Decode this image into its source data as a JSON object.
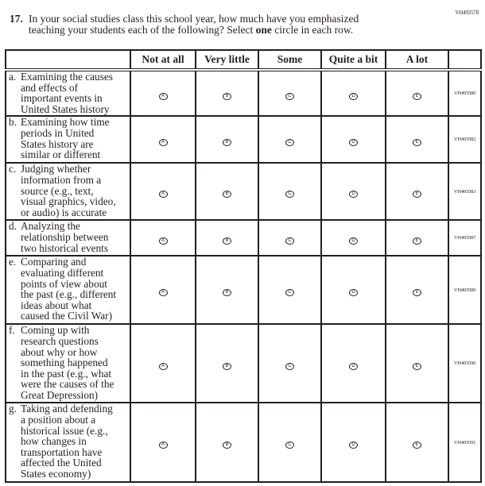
{
  "top_code": "VH493578",
  "question": {
    "number": "17.",
    "line1": "In your social studies class this school year, how much have you emphasized",
    "line2_pre": "teaching your students each of the following? Select ",
    "line2_bold": "one",
    "line2_post": " circle in each row."
  },
  "columns": [
    "Not at all",
    "Very little",
    "Some",
    "Quite a bit",
    "A lot"
  ],
  "bubble_letters": [
    "A",
    "B",
    "C",
    "D",
    "E"
  ],
  "rows": [
    {
      "letter": "a.",
      "text": "Examining the causes\nand effects of\nimportant events in\nUnited States history",
      "code": "VH493580"
    },
    {
      "letter": "b.",
      "text": "Examining how time\nperiods in United\nStates history are\nsimilar or different",
      "code": "VH493582"
    },
    {
      "letter": "c.",
      "text": "Judging whether\ninformation from a\nsource (e.g., text,\nvisual graphics, video,\nor audio) is accurate",
      "code": "VH493583"
    },
    {
      "letter": "d.",
      "text": "Analyzing the\nrelationship between\ntwo historical events",
      "code": "VH493587"
    },
    {
      "letter": "e.",
      "text": "Comparing and\nevaluating different\npoints of view about\nthe past (e.g., different\nideas about what\ncaused the Civil War)",
      "code": "VH493589"
    },
    {
      "letter": "f.",
      "text": "Coming up with\nresearch questions\nabout why or how\nsomething happened\nin the past (e.g., what\nwere the causes of the\nGreat Depression)",
      "code": "VH493590"
    },
    {
      "letter": "g.",
      "text": "Taking and defending\na position about a\nhistorical issue (e.g.,\nhow changes in\ntransportation have\naffected the United\nStates economy)",
      "code": "VH493591"
    }
  ]
}
